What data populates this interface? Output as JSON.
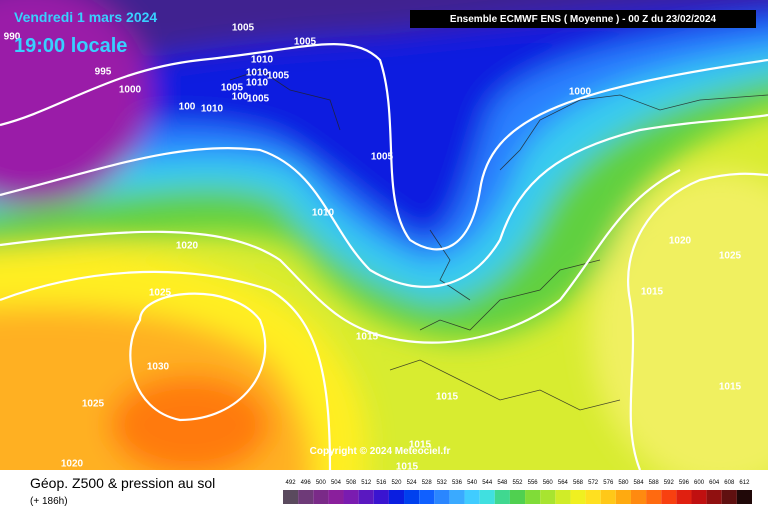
{
  "header": {
    "date": "Vendredi 1 mars 2024",
    "time": "19:00 locale",
    "model": "Ensemble ECMWF ENS  ( Moyenne )  -  00 Z du 23/02/2024"
  },
  "copyright": "Copyright © 2024 Meteociel.fr",
  "footer": {
    "title": "Géop. Z500 & pression au sol",
    "lead": "(+ 186h)"
  },
  "isobars": [
    "1005",
    "1005",
    "990",
    "995",
    "1000",
    "1010",
    "1010",
    "1005",
    "1005",
    "1010",
    "100",
    "1005",
    "100",
    "1010",
    "1000",
    "1005",
    "1010",
    "1020",
    "1020",
    "1025",
    "1025",
    "1015",
    "1015",
    "1030",
    "1015",
    "1025",
    "1015",
    "1015",
    "1020",
    "1015"
  ],
  "scale": {
    "labels": [
      "492",
      "496",
      "500",
      "504",
      "508",
      "512",
      "516",
      "520",
      "524",
      "528",
      "532",
      "536",
      "540",
      "544",
      "548",
      "552",
      "556",
      "560",
      "564",
      "568",
      "572",
      "576",
      "580",
      "584",
      "588",
      "592",
      "596",
      "600",
      "604",
      "608",
      "612"
    ],
    "colors": [
      "#5a4a5e",
      "#6e3a78",
      "#7a2a88",
      "#8a1f9c",
      "#7a1cb0",
      "#5a18c0",
      "#3a14d0",
      "#0a1ee0",
      "#0040ee",
      "#1060ff",
      "#2a86ff",
      "#3aaaff",
      "#40ccff",
      "#40e0e0",
      "#40d890",
      "#50d050",
      "#80dc38",
      "#a8e430",
      "#d0ec28",
      "#f0f020",
      "#ffe020",
      "#ffc818",
      "#ffaa10",
      "#ff8a10",
      "#ff6a10",
      "#f84010",
      "#e02010",
      "#c01010",
      "#901010",
      "#601010",
      "#200808"
    ]
  }
}
